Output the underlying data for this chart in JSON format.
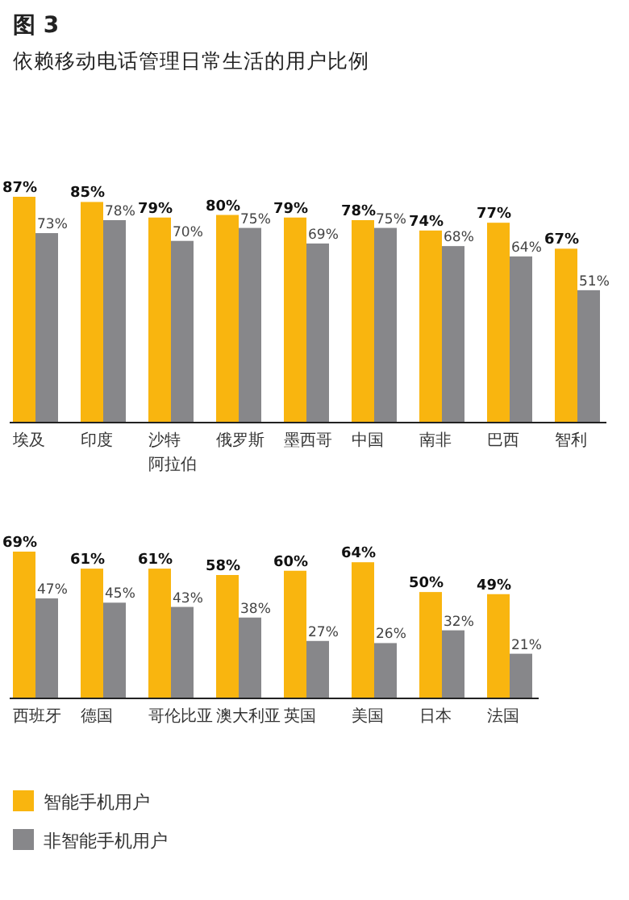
{
  "chart_data": [
    {
      "type": "bar",
      "title": "图 3",
      "subtitle": "依赖移动电话管理日常生活的用户比例",
      "categories": [
        "埃及",
        "印度",
        "沙特阿拉伯",
        "俄罗斯",
        "墨西哥",
        "中国",
        "南非",
        "巴西",
        "智利"
      ],
      "series": [
        {
          "color": "#f9b50f",
          "values": [
            87,
            85,
            79,
            80,
            79,
            78,
            74,
            77,
            67
          ],
          "value_labels": [
            "87%",
            "85%",
            "79%",
            "80%",
            "79%",
            "78%",
            "74%",
            "77%",
            "67%"
          ]
        },
        {
          "color": "#87878a",
          "values": [
            73,
            78,
            70,
            75,
            69,
            75,
            68,
            64,
            51
          ],
          "value_labels": [
            "73%",
            "78%",
            "70%",
            "75%",
            "69%",
            "75%",
            "68%",
            "64%",
            "51%"
          ]
        }
      ]
    },
    {
      "type": "bar",
      "categories": [
        "西班牙",
        "德国",
        "哥伦比亚",
        "澳大利亚",
        "英国",
        "美国",
        "日本",
        "法国"
      ],
      "legend": "bottom left",
      "series": [
        {
          "name": "智能手机用户",
          "color": "#f9b50f",
          "values": [
            69,
            61,
            61,
            58,
            60,
            64,
            50,
            49
          ],
          "value_labels": [
            "69%",
            "61%",
            "61%",
            "58%",
            "60%",
            "64%",
            "50%",
            "49%"
          ]
        },
        {
          "name": "非智能手机用户",
          "color": "#87878a",
          "values": [
            47,
            45,
            43,
            38,
            27,
            26,
            32,
            21
          ],
          "value_labels": [
            "47%",
            "45%",
            "43%",
            "38%",
            "27%",
            "26%",
            "32%",
            "21%"
          ]
        }
      ]
    }
  ]
}
